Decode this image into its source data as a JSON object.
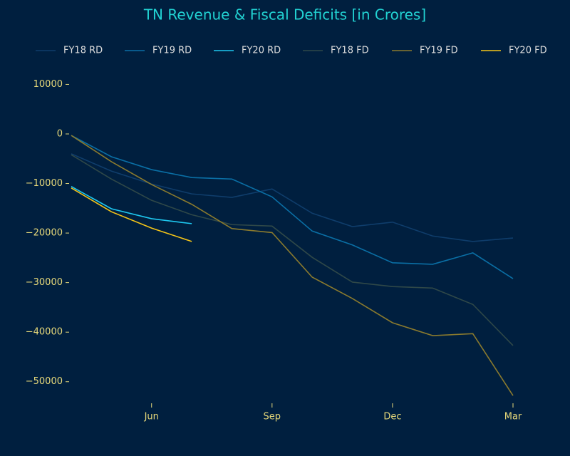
{
  "chart_data": {
    "type": "line",
    "title": "TN Revenue & Fiscal Deficits [in Crores]",
    "categories": [
      null,
      null,
      "Jun",
      null,
      null,
      "Sep",
      null,
      null,
      "Dec",
      null,
      null,
      "Mar"
    ],
    "ylim": [
      -55500,
      11500
    ],
    "yticks": [
      10000,
      0,
      {
        "value": -10000,
        "label": "−10000"
      },
      {
        "value": -20000,
        "label": "−20000"
      },
      {
        "value": -30000,
        "label": "−30000"
      },
      {
        "value": -40000,
        "label": "−40000"
      },
      {
        "value": -50000,
        "label": "−50000"
      }
    ],
    "legend": "top",
    "series": [
      {
        "name": "FY18 RD",
        "color": "#0f3d6b",
        "values": [
          -4000,
          -7500,
          -10100,
          -12100,
          -12800,
          -11100,
          -16000,
          -18700,
          -17800,
          -20600,
          -21700,
          -21000
        ]
      },
      {
        "name": "FY19 RD",
        "color": "#0a6fa5",
        "values": [
          -300,
          -4600,
          -7200,
          -8800,
          -9100,
          -12700,
          -19600,
          -22400,
          -26000,
          -26300,
          -24000,
          -29200
        ]
      },
      {
        "name": "FY20 RD",
        "color": "#1ec8f0",
        "values": [
          -10600,
          -15100,
          -17100,
          -18100,
          null,
          null,
          null,
          null,
          null,
          null,
          null,
          null
        ]
      },
      {
        "name": "FY18 FD",
        "color": "#2f4848",
        "values": [
          -4200,
          -9100,
          -13400,
          -16300,
          -18300,
          -18600,
          -24900,
          -29900,
          -30800,
          -31100,
          -34400,
          -42700
        ]
      },
      {
        "name": "FY19 FD",
        "color": "#8a7a2e",
        "values": [
          -300,
          -5600,
          -10200,
          -14200,
          -19100,
          -19900,
          -28900,
          -33200,
          -38100,
          -40700,
          -40300,
          -52800
        ]
      },
      {
        "name": "FY20 FD",
        "color": "#f5c518",
        "values": [
          -10900,
          -15700,
          -19000,
          -21700,
          null,
          null,
          null,
          null,
          null,
          null,
          null,
          null
        ]
      }
    ]
  }
}
